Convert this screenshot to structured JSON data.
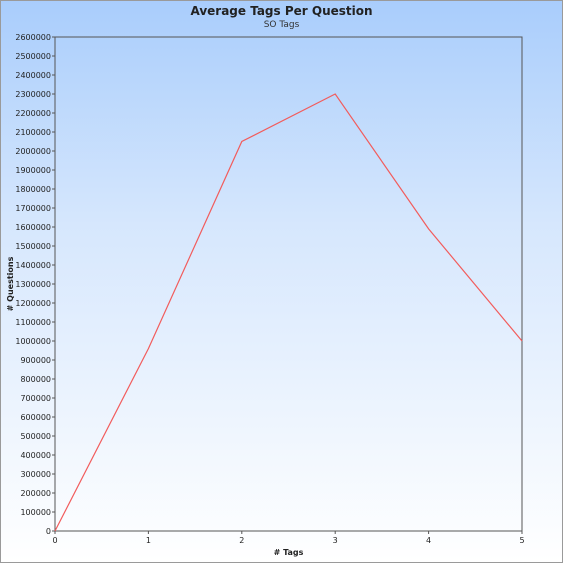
{
  "chart_data": {
    "type": "line",
    "title": "Average Tags Per Question",
    "subtitle": "SO Tags",
    "xlabel": "# Tags",
    "ylabel": "# Questions",
    "x": [
      0,
      1,
      2,
      3,
      4,
      5
    ],
    "series": [
      {
        "values": [
          0,
          960000,
          2050000,
          2300000,
          1590000,
          1000000
        ],
        "color": "#f25c5c"
      }
    ],
    "xlim": [
      0,
      5
    ],
    "ylim": [
      0,
      2600000
    ],
    "ytick_step": 100000,
    "grid": false,
    "background": [
      "#a9cdfc",
      "#ffffff"
    ]
  }
}
